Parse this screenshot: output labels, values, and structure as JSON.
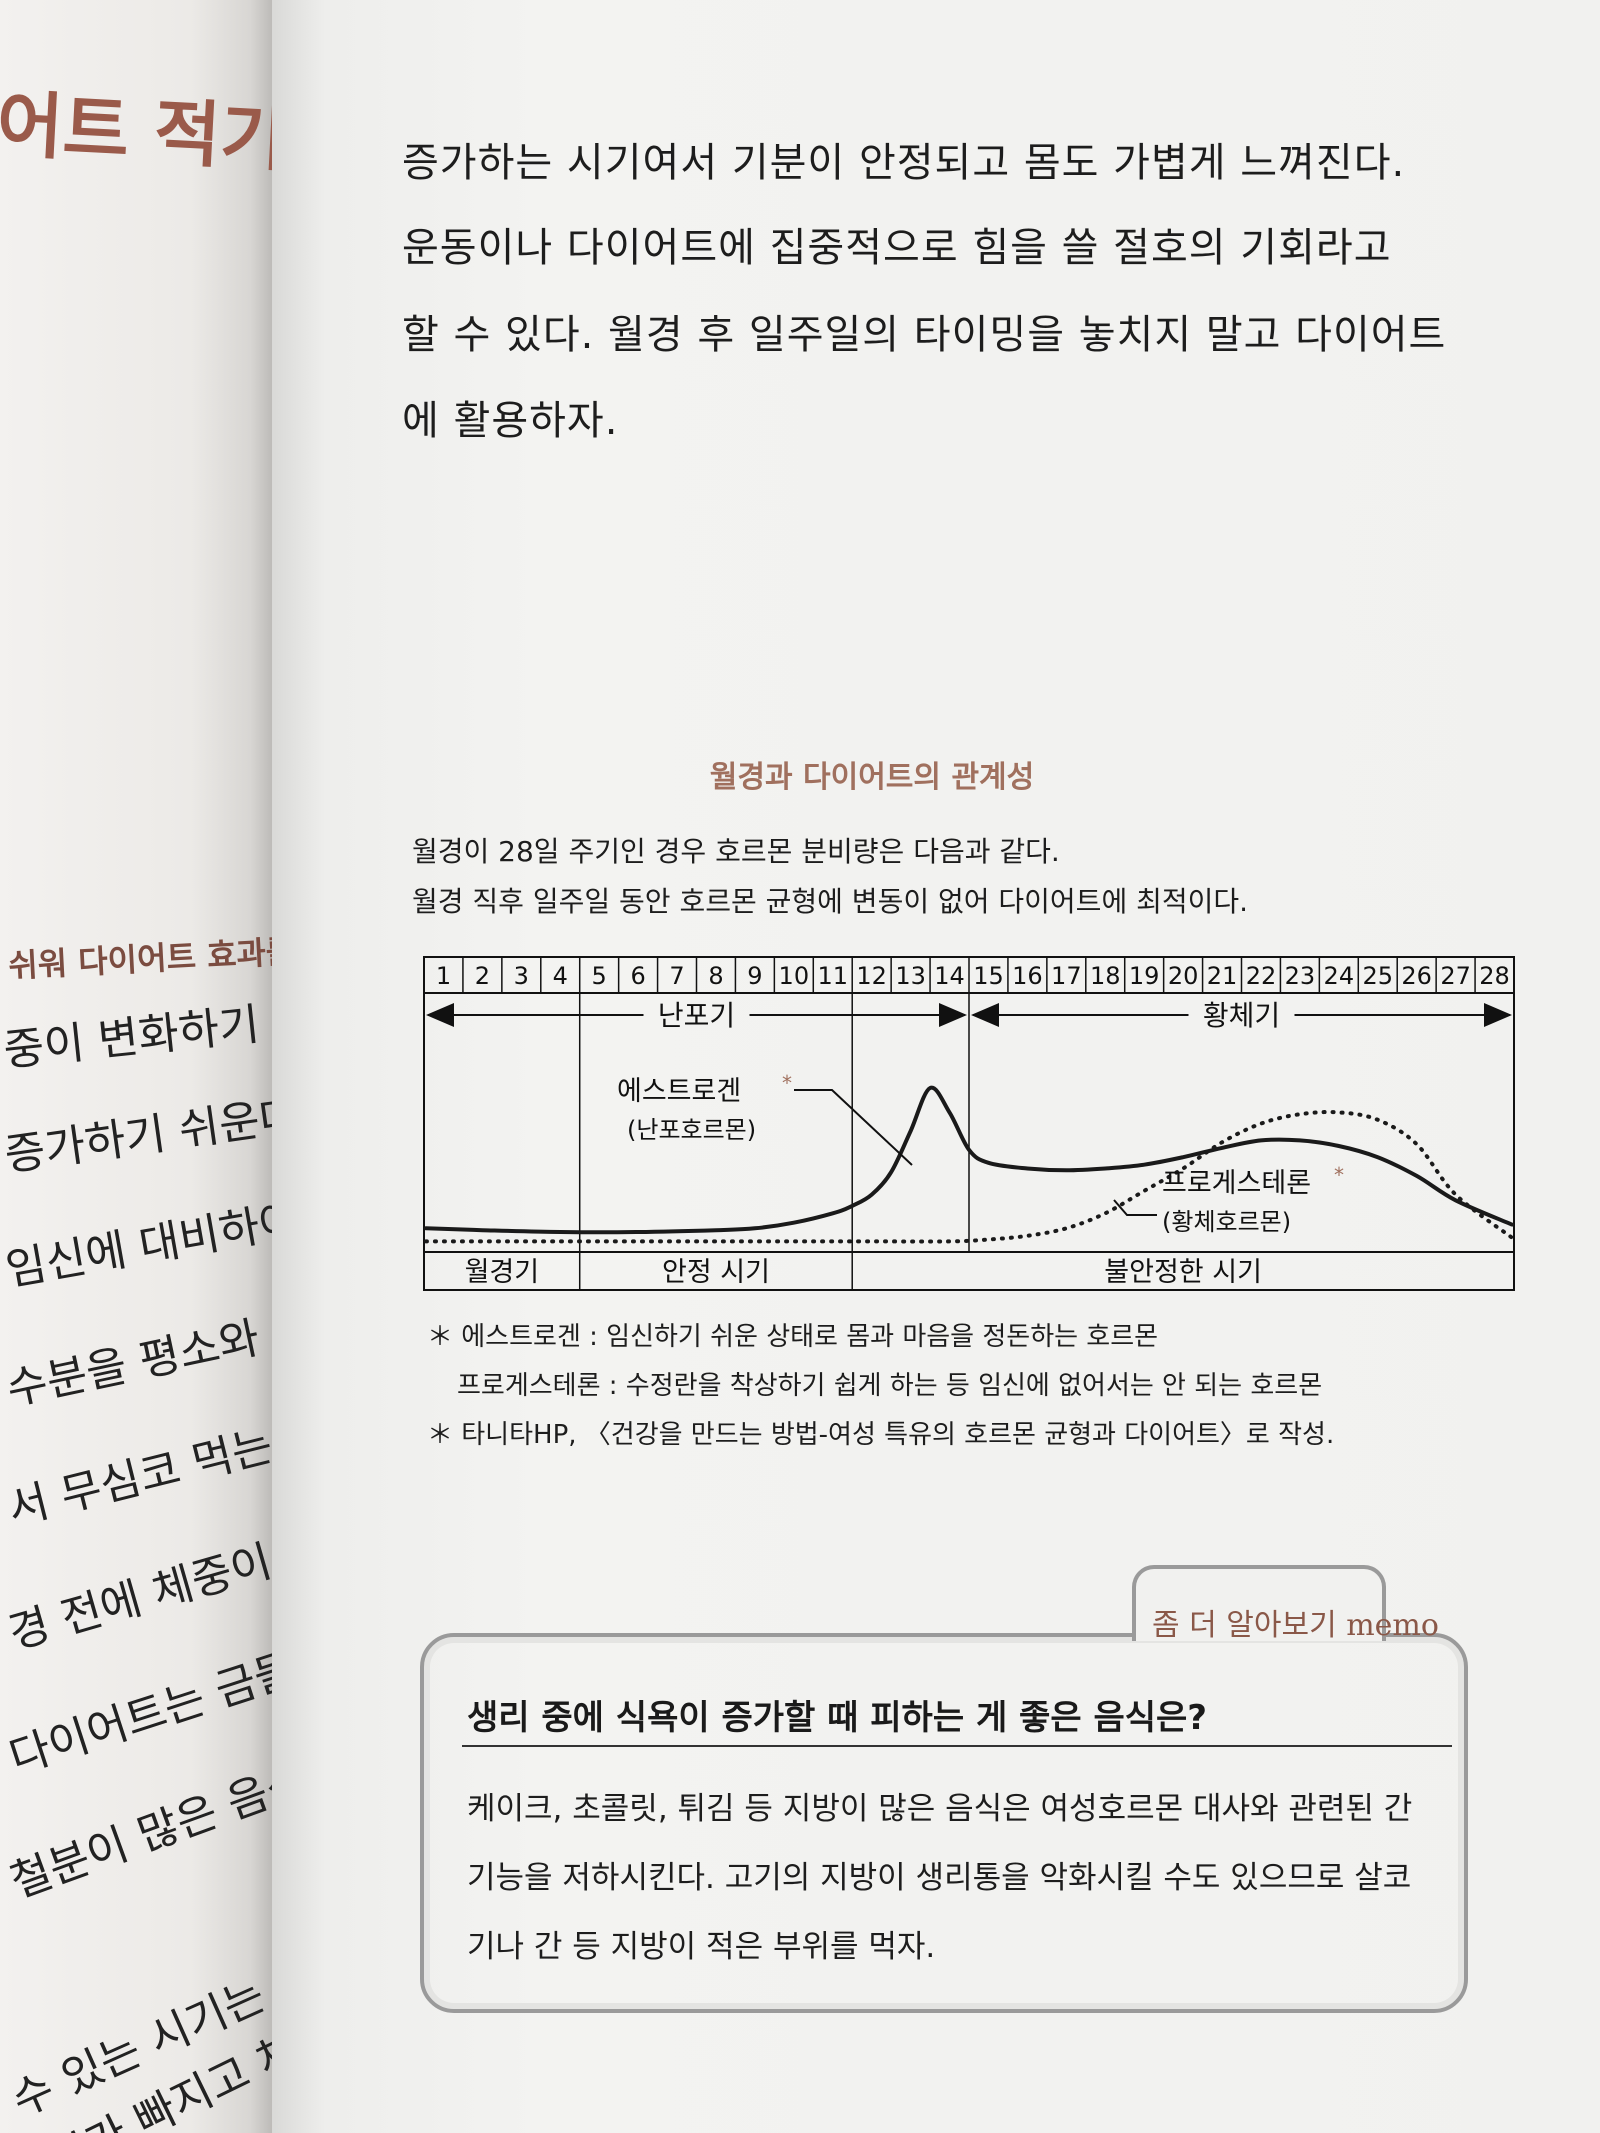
{
  "left_page": {
    "title": "어트 적기",
    "subheading": "쉬워 다이어트 효과를 보기 쉬운",
    "lines": [
      "중이 변화하기 쉬운 경향이 있",
      "증가하기 쉬운데 그 이유는",
      "임신에 대비하여 몸이 수분",
      "수분을 평소와 같이 섭취해도",
      "서 무심코 먹는 양이 늘어난",
      "경 전에 체중이 줄어들지 않",
      "다이어트는 금물이다. 생리",
      "철분이 많은 음식을 적극적",
      "수 있는 시기는 월경이 끝난",
      "붓기가 빠지고 체중"
    ]
  },
  "body": {
    "lines": [
      "증가하는 시기여서 기분이 안정되고 몸도 가볍게 느껴진다.",
      "  운동이나 다이어트에 집중적으로 힘을 쓸 절호의 기회라고",
      "할 수 있다. 월경 후 일주일의 타이밍을 놓치지 말고 다이어트",
      "에 활용하자."
    ]
  },
  "figure": {
    "title": "월경과 다이어트의 관계성",
    "desc_line1": "월경이 28일 주기인 경우 호르몬 분비량은 다음과 같다.",
    "desc_line2": "월경 직후 일주일 동안 호르몬 균형에 변동이 없어 다이어트에 최적이다.",
    "notes": [
      "＊ 에스트로겐 : 임신하기 쉬운 상태로 몸과 마음을 정돈하는 호르몬",
      "프로게스테론 : 수정란을 착상하기 쉽게 하는 등 임신에 없어서는 안 되는 호르몬",
      "＊ 타니타HP, 〈건강을 만드는 방법-여성 특유의 호르몬 균형과 다이어트〉로 작성."
    ]
  },
  "chart_data": {
    "type": "line",
    "x_unit": "day",
    "days": [
      1,
      2,
      3,
      4,
      5,
      6,
      7,
      8,
      9,
      10,
      11,
      12,
      13,
      14,
      15,
      16,
      17,
      18,
      19,
      20,
      21,
      22,
      23,
      24,
      25,
      26,
      27,
      28
    ],
    "phases": [
      {
        "label": "난포기",
        "start": 1,
        "end": 14
      },
      {
        "label": "황체기",
        "start": 15,
        "end": 28
      }
    ],
    "periods": [
      {
        "label": "월경기",
        "start": 1,
        "end": 4
      },
      {
        "label": "안정 시기",
        "start": 5,
        "end": 11
      },
      {
        "label": "불안정한 시기",
        "start": 12,
        "end": 28
      }
    ],
    "series": [
      {
        "name": "에스트로겐",
        "sublabel": "(난포호르몬)",
        "style": "solid",
        "color": "#1a1a1a",
        "x": [
          1,
          2,
          4,
          6,
          8,
          9,
          10,
          11,
          11.5,
          12,
          12.5,
          13,
          13.5,
          14,
          14.5,
          15,
          16,
          17,
          18,
          19,
          20,
          21,
          22,
          23,
          24,
          25,
          26,
          27,
          28
        ],
        "values": [
          0.1,
          0.09,
          0.08,
          0.08,
          0.09,
          0.1,
          0.13,
          0.18,
          0.22,
          0.28,
          0.4,
          0.62,
          0.85,
          0.72,
          0.52,
          0.45,
          0.42,
          0.41,
          0.42,
          0.44,
          0.48,
          0.53,
          0.57,
          0.57,
          0.54,
          0.48,
          0.38,
          0.25,
          0.12
        ]
      },
      {
        "name": "프로게스테론",
        "sublabel": "(황체호르몬)",
        "style": "dotted",
        "color": "#1a1a1a",
        "x": [
          1,
          4,
          8,
          12,
          14,
          15,
          16,
          17,
          18,
          19,
          20,
          21,
          22,
          23,
          24,
          25,
          26,
          27,
          28
        ],
        "values": [
          0.03,
          0.03,
          0.03,
          0.03,
          0.03,
          0.04,
          0.06,
          0.1,
          0.18,
          0.3,
          0.42,
          0.56,
          0.66,
          0.71,
          0.72,
          0.68,
          0.55,
          0.28,
          0.05
        ]
      }
    ],
    "ylim": [
      0,
      1
    ]
  },
  "memo": {
    "label": "좀 더 알아보기 memo",
    "heading": "생리 중에 식욕이 증가할 때 피하는 게 좋은 음식은?",
    "lines": [
      "케이크, 초콜릿, 튀김 등 지방이 많은 음식은 여성호르몬 대사와 관련된 간",
      "기능을 저하시킨다. 고기의 지방이 생리통을 악화시킬 수도 있으므로 살코",
      "기나 간 등 지방이 적은 부위를 먹자."
    ]
  }
}
